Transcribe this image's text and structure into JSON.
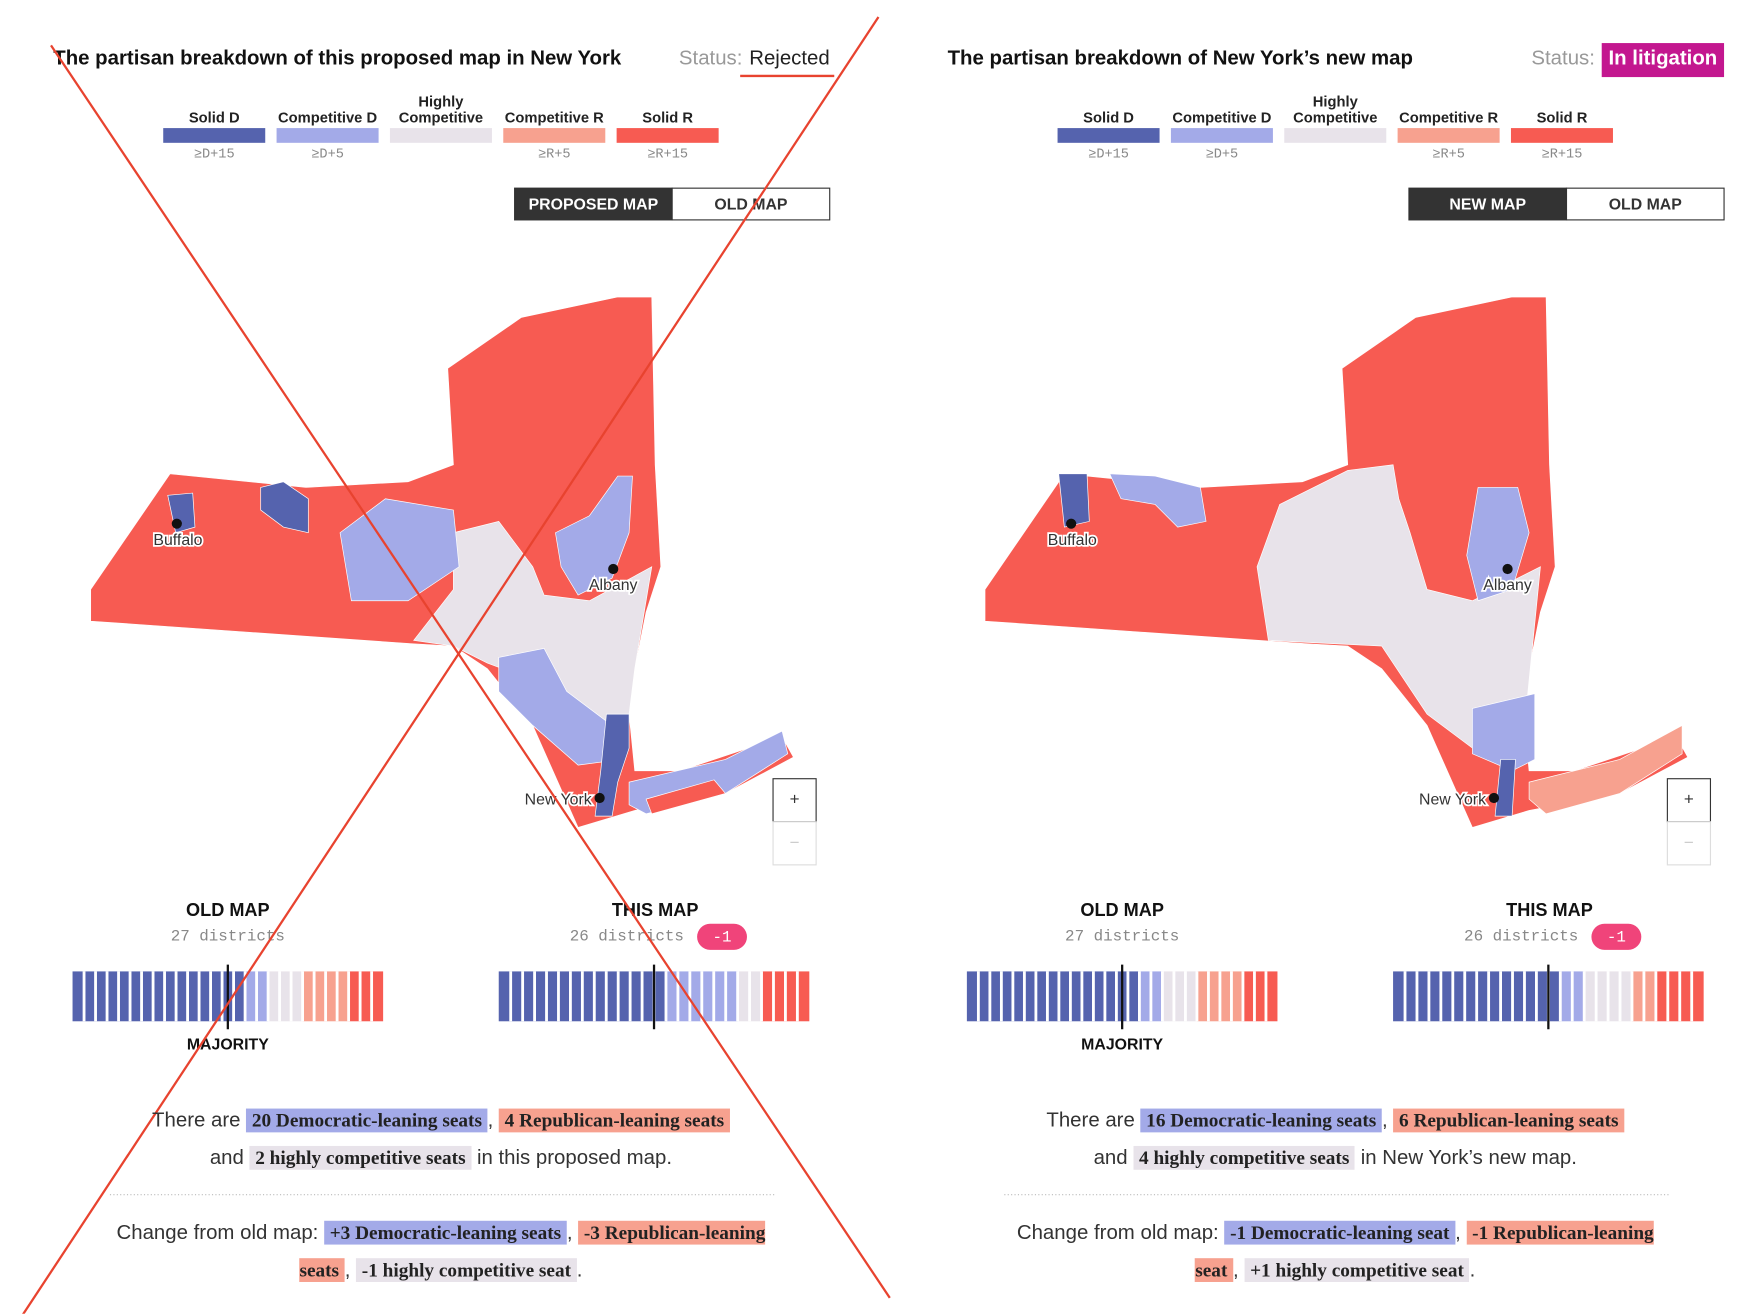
{
  "panels": [
    {
      "title": "The partisan breakdown of this proposed map in New York",
      "status_label": "Status:",
      "status": "Rejected",
      "status_underline": "#e8432f",
      "legend": [
        {
          "label": "Solid D",
          "sublabel": "≥D+15",
          "color": "#5563ae"
        },
        {
          "label": "Competitive D",
          "sublabel": "≥D+5",
          "color": "#a3aae8"
        },
        {
          "label": "Highly Competitive",
          "color": "#e8e3ea"
        },
        {
          "label": "Competitive R",
          "sublabel": "≥R+5",
          "color": "#f7a18f"
        },
        {
          "label": "Solid R",
          "sublabel": "≥R+15",
          "color": "#f75b52"
        }
      ],
      "toggle": [
        "PROPOSED MAP",
        "OLD MAP"
      ],
      "map_labels": [
        "Buffalo",
        "Albany",
        "New York"
      ],
      "zoom": [
        "+",
        "−"
      ],
      "old_map": {
        "heading": "OLD MAP",
        "districts": "27 districts",
        "seats": [
          15,
          2,
          3,
          4,
          3
        ]
      },
      "this_map": {
        "heading": "THIS MAP",
        "districts": "26 districts",
        "badge": "-1",
        "seats": [
          14,
          6,
          2,
          0,
          4
        ]
      },
      "majority_label": "MAJORITY",
      "summary": [
        [
          {
            "text": "There are"
          },
          {
            "text": "20 Democratic-leaning seats",
            "kind": 1
          },
          {
            "text": ","
          },
          {
            "text": "4 Republican-leaning seats",
            "kind": 3
          }
        ],
        [
          {
            "text": "and"
          },
          {
            "text": "2 highly competitive seats",
            "kind": 2
          },
          {
            "text": "in this proposed map."
          }
        ]
      ],
      "change": [
        {
          "text": "Change from old map:"
        },
        {
          "text": "+3 Democratic-leaning seats",
          "kind": 1
        },
        {
          "text": ","
        },
        {
          "text": "-3 Republican-leaning seats",
          "kind": 3
        },
        {
          "text": ","
        },
        {
          "text": "-1 highly competitive seat",
          "kind": 2
        },
        {
          "text": "."
        }
      ]
    },
    {
      "title": "The partisan breakdown of New York’s new map",
      "status_label": "Status:",
      "status": "In litigation",
      "status_color": "#c3178f",
      "legend": [
        {
          "label": "Solid D",
          "sublabel": "≥D+15",
          "color": "#5563ae"
        },
        {
          "label": "Competitive D",
          "sublabel": "≥D+5",
          "color": "#a3aae8"
        },
        {
          "label": "Highly Competitive",
          "color": "#e8e3ea"
        },
        {
          "label": "Competitive R",
          "sublabel": "≥R+5",
          "color": "#f7a18f"
        },
        {
          "label": "Solid R",
          "sublabel": "≥R+15",
          "color": "#f75b52"
        }
      ],
      "toggle": [
        "NEW MAP",
        "OLD MAP"
      ],
      "map_labels": [
        "Buffalo",
        "Albany",
        "New York"
      ],
      "zoom": [
        "+",
        "−"
      ],
      "old_map": {
        "heading": "OLD MAP",
        "districts": "27 districts",
        "seats": [
          15,
          2,
          3,
          4,
          3
        ]
      },
      "this_map": {
        "heading": "THIS MAP",
        "districts": "26 districts",
        "badge": "-1",
        "seats": [
          14,
          2,
          4,
          2,
          4
        ]
      },
      "majority_label": "MAJORITY",
      "summary": [
        [
          {
            "text": "There are"
          },
          {
            "text": "16 Democratic-leaning seats",
            "kind": 1
          },
          {
            "text": ","
          },
          {
            "text": "6 Republican-leaning seats",
            "kind": 3
          }
        ],
        [
          {
            "text": "and"
          },
          {
            "text": "4 highly competitive seats",
            "kind": 2
          },
          {
            "text": "in New York’s new map."
          }
        ]
      ],
      "change": [
        {
          "text": "Change from old map:"
        },
        {
          "text": "-1 Democratic-leaning seat",
          "kind": 1
        },
        {
          "text": ","
        },
        {
          "text": "-1 Republican-leaning seat",
          "kind": 3
        },
        {
          "text": ","
        },
        {
          "text": "+1 highly competitive seat",
          "kind": 2
        },
        {
          "text": "."
        }
      ]
    }
  ]
}
